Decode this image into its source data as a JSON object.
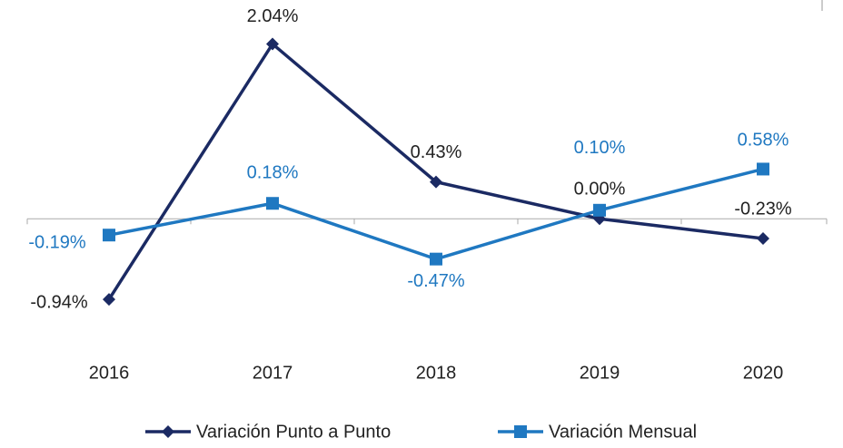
{
  "chart_data": {
    "type": "line",
    "categories": [
      "2016",
      "2017",
      "2018",
      "2019",
      "2020"
    ],
    "series": [
      {
        "name": "Variación Punto a Punto",
        "color": "#1b2a63",
        "marker": "diamond",
        "values": [
          -0.94,
          2.04,
          0.43,
          0.0,
          -0.23
        ],
        "value_labels": [
          "-0.94%",
          "2.04%",
          "0.43%",
          "0.00%",
          "-0.23%"
        ]
      },
      {
        "name": "Variación Mensual",
        "color": "#1f78c1",
        "marker": "square",
        "values": [
          -0.19,
          0.18,
          -0.47,
          0.1,
          0.58
        ],
        "value_labels": [
          "-0.19%",
          "0.18%",
          "-0.47%",
          "0.10%",
          "0.58%"
        ]
      }
    ],
    "ylim": [
      -1.5,
      2.5
    ],
    "legend": "bottom"
  }
}
